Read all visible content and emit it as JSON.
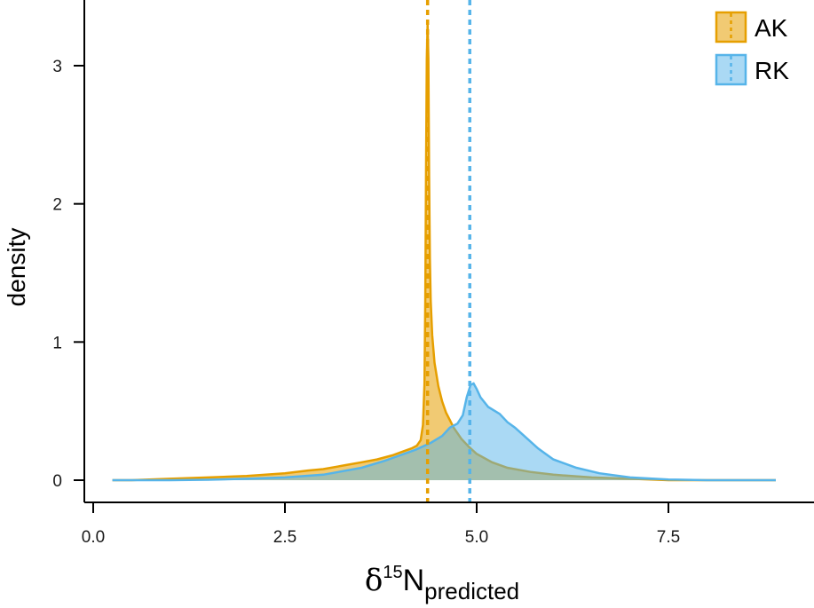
{
  "chart_data": {
    "type": "area",
    "title": "",
    "xlabel": {
      "base": "δ",
      "superscript": "15",
      "main": "N",
      "subscript": "predicted"
    },
    "ylabel": "density",
    "xlim": [
      0.0,
      9.0
    ],
    "ylim": [
      -0.15,
      3.45
    ],
    "x_ticks": [
      0.0,
      2.5,
      5.0,
      7.5
    ],
    "x_tick_labels": [
      "0.0",
      "2.5",
      "5.0",
      "7.5"
    ],
    "y_ticks": [
      0,
      1,
      2,
      3
    ],
    "y_tick_labels": [
      "0",
      "1",
      "2",
      "3"
    ],
    "grid": false,
    "legend_position": "top-right",
    "series": [
      {
        "name": "AK",
        "color": "#E69F00",
        "fill_opacity": 0.55,
        "mean_line": 4.36,
        "x": [
          0.25,
          0.5,
          1.0,
          1.5,
          2.0,
          2.5,
          2.8,
          3.0,
          3.3,
          3.5,
          3.7,
          3.9,
          4.05,
          4.15,
          4.22,
          4.27,
          4.3,
          4.32,
          4.33,
          4.34,
          4.35,
          4.36,
          4.37,
          4.38,
          4.39,
          4.4,
          4.42,
          4.45,
          4.5,
          4.55,
          4.6,
          4.7,
          4.8,
          4.9,
          5.0,
          5.2,
          5.4,
          5.7,
          6.0,
          6.5,
          7.0,
          7.5,
          8.0,
          8.5,
          8.9
        ],
        "y": [
          0.0,
          0.0,
          0.01,
          0.02,
          0.03,
          0.05,
          0.07,
          0.08,
          0.11,
          0.13,
          0.15,
          0.18,
          0.21,
          0.23,
          0.25,
          0.29,
          0.4,
          0.7,
          1.3,
          2.3,
          3.05,
          3.3,
          3.05,
          2.2,
          1.6,
          1.3,
          1.05,
          0.85,
          0.68,
          0.57,
          0.49,
          0.38,
          0.3,
          0.24,
          0.19,
          0.13,
          0.09,
          0.06,
          0.04,
          0.02,
          0.01,
          0.0,
          0.0,
          0.0,
          0.0
        ]
      },
      {
        "name": "RK",
        "color": "#56B4E9",
        "fill_opacity": 0.5,
        "mean_line": 4.91,
        "x": [
          0.25,
          1.0,
          1.5,
          2.0,
          2.5,
          3.0,
          3.5,
          3.8,
          4.0,
          4.2,
          4.4,
          4.55,
          4.65,
          4.75,
          4.82,
          4.87,
          4.92,
          4.96,
          5.0,
          5.05,
          5.15,
          5.3,
          5.4,
          5.5,
          5.6,
          5.8,
          6.0,
          6.3,
          6.6,
          7.0,
          7.5,
          8.0,
          8.5,
          8.9
        ],
        "y": [
          0.0,
          0.0,
          0.003,
          0.01,
          0.02,
          0.04,
          0.09,
          0.14,
          0.18,
          0.22,
          0.27,
          0.32,
          0.38,
          0.41,
          0.47,
          0.6,
          0.69,
          0.7,
          0.66,
          0.6,
          0.53,
          0.48,
          0.42,
          0.38,
          0.33,
          0.23,
          0.15,
          0.09,
          0.05,
          0.02,
          0.005,
          0.0,
          0.0,
          0.0
        ]
      }
    ]
  }
}
